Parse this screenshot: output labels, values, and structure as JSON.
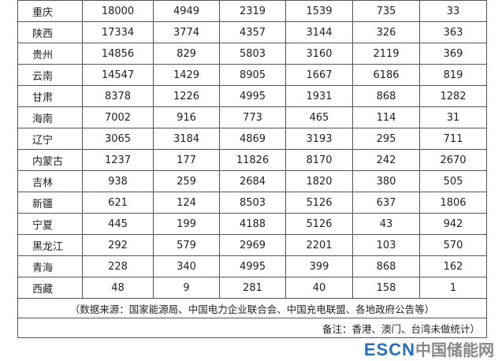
{
  "table": {
    "rows": [
      [
        "重庆",
        18000,
        4949,
        2319,
        1539,
        735,
        33
      ],
      [
        "陕西",
        17334,
        3774,
        4357,
        3144,
        326,
        363
      ],
      [
        "贵州",
        14856,
        829,
        5803,
        3160,
        2119,
        369
      ],
      [
        "云南",
        14547,
        1429,
        8905,
        1667,
        6186,
        819
      ],
      [
        "甘肃",
        8378,
        1226,
        4995,
        1931,
        868,
        1282
      ],
      [
        "海南",
        7002,
        916,
        773,
        465,
        114,
        31
      ],
      [
        "辽宁",
        3065,
        3184,
        4869,
        3193,
        295,
        711
      ],
      [
        "内蒙古",
        1237,
        177,
        11826,
        8170,
        242,
        2670
      ],
      [
        "吉林",
        938,
        259,
        2684,
        1820,
        380,
        505
      ],
      [
        "新疆",
        621,
        124,
        8503,
        5126,
        637,
        1806
      ],
      [
        "宁夏",
        445,
        199,
        4188,
        5126,
        43,
        942
      ],
      [
        "黑龙江",
        292,
        579,
        2969,
        2201,
        103,
        570
      ],
      [
        "青海",
        228,
        340,
        4995,
        399,
        868,
        162
      ],
      [
        "西藏",
        48,
        9,
        281,
        40,
        158,
        1
      ]
    ],
    "source": "（数据来源：国家能源局、中国电力企业联合会、中国充电联盟、各地政府公告等）",
    "note": "备注：香港、澳门、台湾未做统计）"
  },
  "watermark": {
    "brand": "ESCN",
    "site": "中国储能网"
  }
}
